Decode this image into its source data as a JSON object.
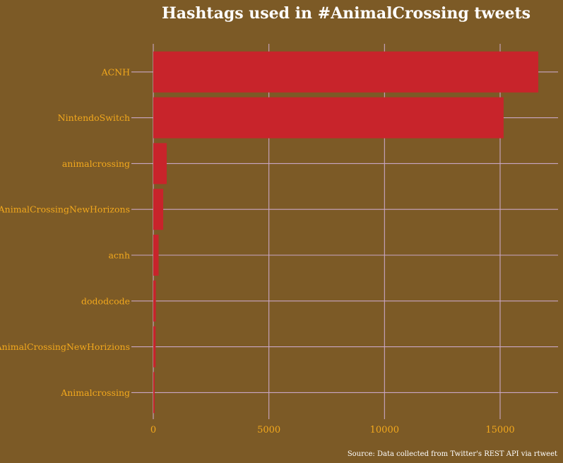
{
  "colors": {
    "background": "#7c5a26",
    "bar": "#c8242b",
    "grid": "#c9a6c4",
    "label": "#f2a81d",
    "title": "#ffffff"
  },
  "chart_data": {
    "type": "bar",
    "orientation": "horizontal",
    "title": "Hashtags used in #AnimalCrossing tweets",
    "caption": "Source: Data collected from Twitter's REST API via rtweet",
    "xlabel": "",
    "ylabel": "",
    "categories": [
      "ACNH",
      "NintendoSwitch",
      "animalcrossing",
      "AnimalCrossingNewHorizons",
      "acnh",
      "dododcode",
      "AnimalCrossingNewHorizions",
      "Animalcrossing"
    ],
    "values": [
      16650,
      15150,
      580,
      430,
      230,
      110,
      100,
      60
    ],
    "xlim": [
      0,
      17500
    ],
    "x_ticks": [
      0,
      5000,
      10000,
      15000
    ],
    "x_tick_labels": [
      "0",
      "5000",
      "10000",
      "15000"
    ],
    "grid": true,
    "legend": "none"
  }
}
